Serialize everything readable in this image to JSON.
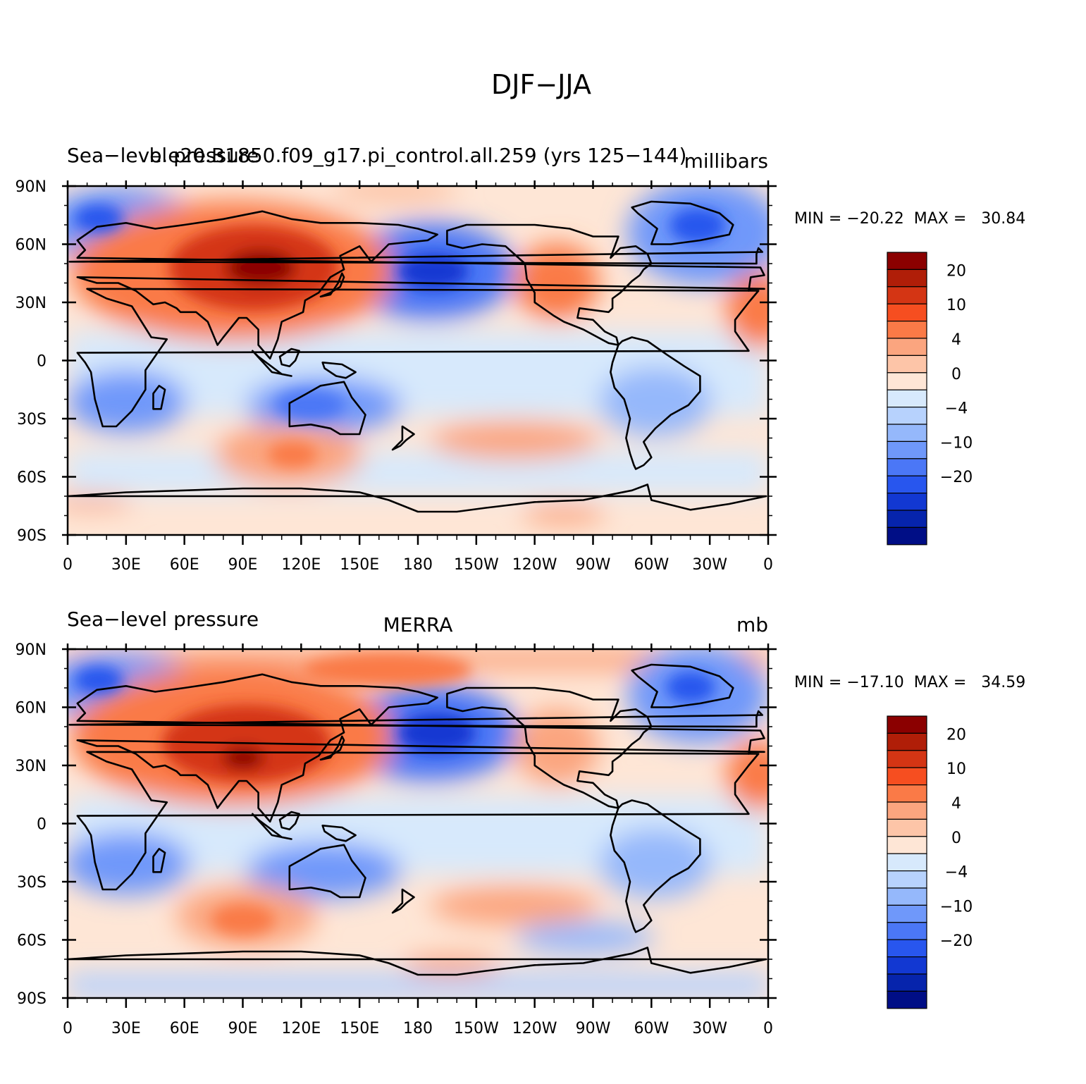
{
  "figure_title": "DJF−JJA",
  "panels": [
    {
      "left_title": "Sea−level pressure",
      "center_title": "b.e20.B1850.f09_g17.pi_control.all.259 (yrs 125−144)",
      "units": "millibars",
      "stats": "MIN = −20.22  MAX =   30.84"
    },
    {
      "left_title": "Sea−level pressure",
      "center_title": "MERRA",
      "units": "mb",
      "stats": "MIN = −17.10  MAX =   34.59"
    }
  ],
  "lat_labels": [
    "90N",
    "60N",
    "30N",
    "0",
    "30S",
    "60S",
    "90S"
  ],
  "lon_labels": [
    "0",
    "30E",
    "60E",
    "90E",
    "120E",
    "150E",
    "180",
    "150W",
    "120W",
    "90W",
    "60W",
    "30W",
    "0"
  ],
  "colorbar": {
    "labels": [
      "20",
      "10",
      "4",
      "0",
      "−4",
      "−10",
      "−20"
    ],
    "colors": [
      "#8b0000",
      "#b01e08",
      "#d43514",
      "#f64e20",
      "#fa7a47",
      "#fba57f",
      "#fdc5a8",
      "#fee6d6",
      "#d7e9fc",
      "#b7d2fd",
      "#95b8fb",
      "#6f98fa",
      "#4b77f6",
      "#2856ee",
      "#1238d2",
      "#0624ac",
      "#000e86"
    ]
  },
  "colors": {
    "positive_strong": "#b01e08",
    "positive_mid": "#fa7a47",
    "positive_weak": "#fee6d6",
    "negative_weak": "#d7e9fc",
    "negative_mid": "#6f98fa",
    "negative_strong": "#1238d2"
  }
}
